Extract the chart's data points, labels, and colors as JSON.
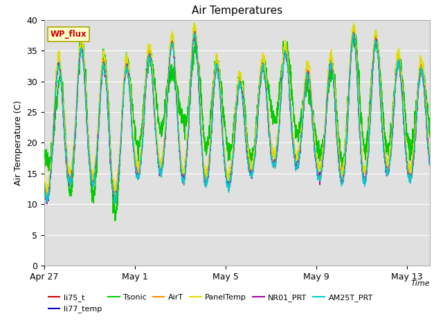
{
  "title": "Air Temperatures",
  "xlabel": "Time",
  "ylabel": "Air Temperature (C)",
  "ylim": [
    0,
    40
  ],
  "x_ticks_labels": [
    "Apr 27",
    "May 1",
    "May 5",
    "May 9",
    "May 13"
  ],
  "x_ticks_positions": [
    0,
    4,
    8,
    12,
    16
  ],
  "background_color": "#e0e0e0",
  "fig_background": "#ffffff",
  "legend_entries": [
    "li75_t",
    "li77_temp",
    "Tsonic",
    "AirT",
    "PanelTemp",
    "NR01_PRT",
    "AM25T_PRT"
  ],
  "legend_colors": [
    "#cc0000",
    "#0000cc",
    "#00cc00",
    "#ff8800",
    "#dddd00",
    "#aa00aa",
    "#00cccc"
  ],
  "wp_flux_text": "WP_flux",
  "wp_flux_color": "#cc0000",
  "wp_flux_bg": "#ffffcc",
  "wp_flux_border": "#aaa800"
}
